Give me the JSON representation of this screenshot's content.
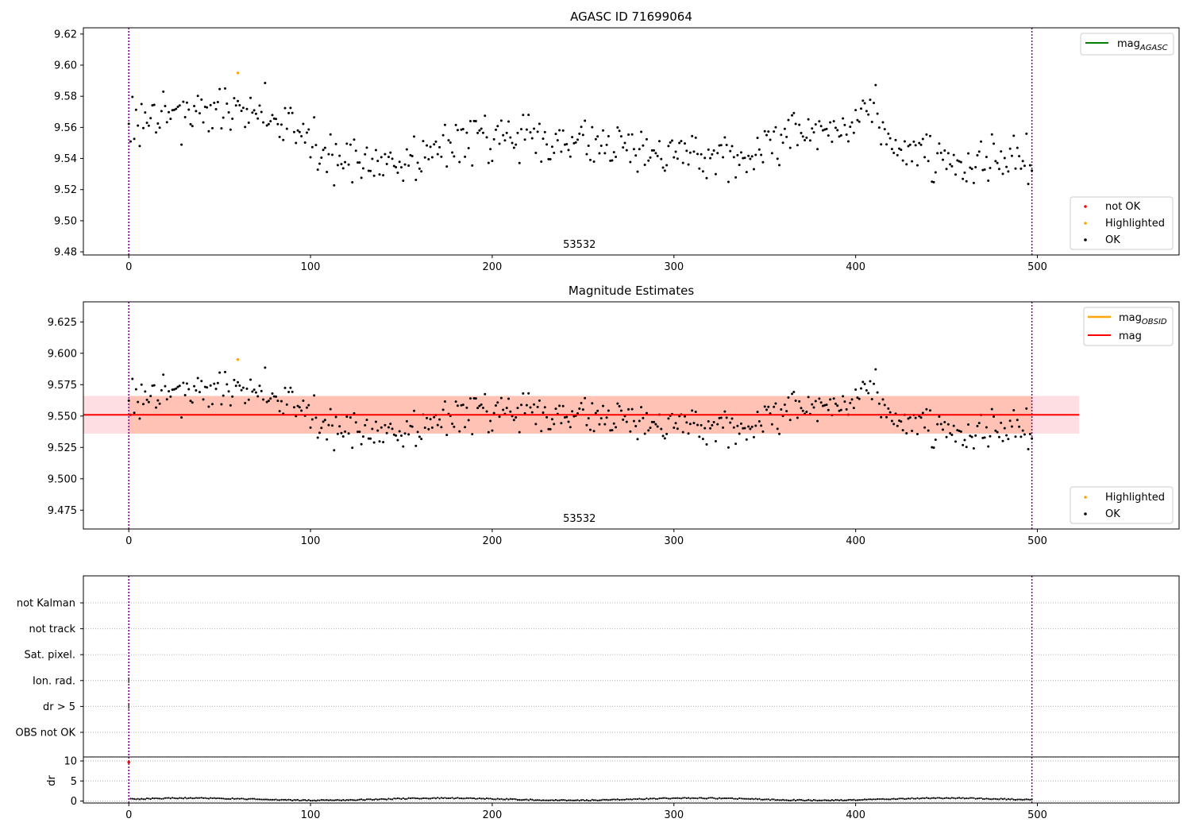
{
  "chart_data": [
    {
      "type": "scatter",
      "title": "AGASC ID 71699064",
      "xlabel": "",
      "ylabel": "",
      "xlim": [
        -25,
        578
      ],
      "ylim": [
        9.478,
        9.624
      ],
      "x_ticks": [
        0,
        100,
        200,
        300,
        400,
        500
      ],
      "y_ticks": [
        9.48,
        9.5,
        9.52,
        9.54,
        9.56,
        9.58,
        9.6,
        9.62
      ],
      "y_tick_labels": [
        "9.48",
        "9.50",
        "9.52",
        "9.54",
        "9.56",
        "9.58",
        "9.60",
        "9.62"
      ],
      "vlines": [
        0,
        497
      ],
      "obsid_label": {
        "x": 248,
        "text": "53532"
      },
      "line_legend": {
        "position": "top-right",
        "entries": [
          {
            "main": "mag",
            "sub": "AGASC",
            "color": "#008000"
          }
        ]
      },
      "point_legend": {
        "position": "bottom-right",
        "entries": [
          {
            "label": "not OK",
            "color": "#ff0000"
          },
          {
            "label": "Highlighted",
            "color": "#ffa500"
          },
          {
            "label": "OK",
            "color": "#000000"
          }
        ]
      },
      "highlighted_point": {
        "x": 60,
        "y": 9.595
      },
      "series_model": {
        "n": 498,
        "mean": 9.552,
        "noise": 0.0075,
        "trend_knots": [
          [
            0,
            9.568
          ],
          [
            40,
            9.572
          ],
          [
            70,
            9.57
          ],
          [
            95,
            9.558
          ],
          [
            110,
            9.54
          ],
          [
            150,
            9.535
          ],
          [
            175,
            9.545
          ],
          [
            195,
            9.556
          ],
          [
            220,
            9.553
          ],
          [
            250,
            9.553
          ],
          [
            280,
            9.545
          ],
          [
            310,
            9.542
          ],
          [
            335,
            9.538
          ],
          [
            360,
            9.552
          ],
          [
            380,
            9.557
          ],
          [
            395,
            9.558
          ],
          [
            410,
            9.567
          ],
          [
            420,
            9.55
          ],
          [
            440,
            9.545
          ],
          [
            455,
            9.536
          ],
          [
            480,
            9.543
          ],
          [
            497,
            9.538
          ]
        ]
      }
    },
    {
      "type": "scatter",
      "title": "Magnitude Estimates",
      "xlabel": "",
      "ylabel": "",
      "xlim": [
        -25,
        578
      ],
      "ylim": [
        9.46,
        9.641
      ],
      "x_ticks": [
        0,
        100,
        200,
        300,
        400,
        500
      ],
      "y_ticks": [
        9.475,
        9.5,
        9.525,
        9.55,
        9.575,
        9.6,
        9.625
      ],
      "y_tick_labels": [
        "9.475",
        "9.500",
        "9.525",
        "9.550",
        "9.575",
        "9.600",
        "9.625"
      ],
      "vlines": [
        0,
        497
      ],
      "obsid_label": {
        "x": 248,
        "text": "53532"
      },
      "mag_line": 9.551,
      "mag_band": [
        9.536,
        9.566
      ],
      "mag_band_x": [
        -25,
        523
      ],
      "obsid_band_x": [
        0,
        497
      ],
      "line_legend": {
        "position": "top-right",
        "entries": [
          {
            "main": "mag",
            "sub": "OBSID",
            "color": "#ffa500"
          },
          {
            "main": "mag",
            "sub": "",
            "color": "#ff0000"
          }
        ]
      },
      "point_legend": {
        "position": "bottom-right",
        "entries": [
          {
            "label": "Highlighted",
            "color": "#ffa500"
          },
          {
            "label": "OK",
            "color": "#000000"
          }
        ]
      },
      "highlighted_point": {
        "x": 60,
        "y": 9.595
      }
    },
    {
      "type": "scatter",
      "title": "",
      "category_labels": [
        "not Kalman",
        "not track",
        "Sat. pixel.",
        "Ion. rad.",
        "dr > 5",
        "OBS not OK"
      ],
      "xlim": [
        -25,
        578
      ],
      "x_ticks": [
        0,
        100,
        200,
        300,
        400,
        500
      ],
      "vlines": [
        0,
        497
      ],
      "flag_marks": [
        {
          "category": "Ion. rad.",
          "x": 0
        },
        {
          "category": "dr > 5",
          "x": 0
        }
      ]
    },
    {
      "type": "scatter",
      "title": "",
      "ylabel": "dr",
      "xlim": [
        -25,
        578
      ],
      "ylim": [
        -0.5,
        11
      ],
      "x_ticks": [
        0,
        100,
        200,
        300,
        400,
        500
      ],
      "x_tick_labels": [
        "0",
        "100",
        "200",
        "300",
        "400",
        "500"
      ],
      "y_ticks": [
        0,
        5,
        10
      ],
      "y_tick_labels": [
        "0",
        "5",
        "10"
      ],
      "vlines": [
        0,
        497
      ],
      "red_point": {
        "x": 0,
        "y": 9.7
      },
      "dr_model": {
        "n": 498,
        "base": 0.45,
        "amp": 0.35
      }
    }
  ]
}
